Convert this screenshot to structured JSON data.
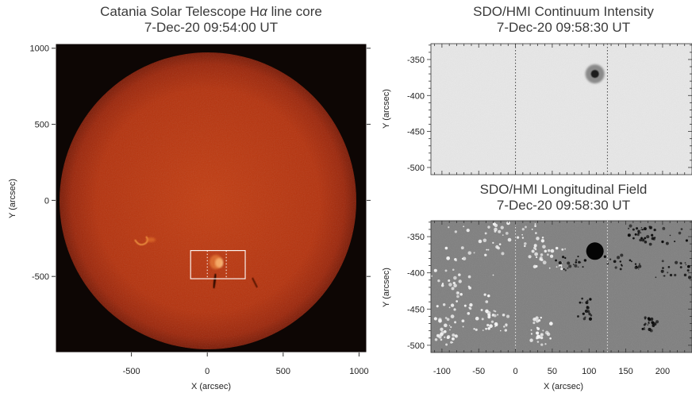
{
  "panels": {
    "halpha": {
      "title_line1": "Catania Solar Telescope  H",
      "title_alpha": "α",
      "title_suffix": " line core",
      "title_line2": "7-Dec-20  09:54:00 UT",
      "xlabel": "X (arcsec)",
      "ylabel": "Y (arcsec)"
    },
    "continuum": {
      "title_line1": "SDO/HMI Continuum Intensity",
      "title_line2": "7-Dec-20  09:58:30 UT",
      "ylabel": "Y (arcsec)"
    },
    "magnetogram": {
      "title_line1": "SDO/HMI Longitudinal Field",
      "title_line2": "7-Dec-20  09:58:30 UT",
      "xlabel": "X (arcsec)",
      "ylabel": "Y (arcsec)"
    }
  },
  "chart_data": [
    {
      "type": "image",
      "panel": "halpha",
      "xlim": [
        -1000,
        1050
      ],
      "ylim": [
        -1000,
        1030
      ],
      "xticks": [
        -500,
        0,
        500,
        1000
      ],
      "yticks": [
        -500,
        0,
        500,
        1000
      ],
      "solar_disk_radius": 975,
      "colormap": "red",
      "box": {
        "x": [
          -110,
          250
        ],
        "y": [
          -515,
          -330
        ]
      },
      "dotted_x": [
        0,
        125
      ]
    },
    {
      "type": "image",
      "panel": "continuum",
      "xlim": [
        -115,
        240
      ],
      "ylim": [
        -510,
        -328
      ],
      "yticks": [
        -350,
        -400,
        -450,
        -500
      ],
      "colormap": "gray",
      "sunspot": {
        "x": 108,
        "y": -370
      },
      "dotted_x": [
        0,
        125
      ]
    },
    {
      "type": "image",
      "panel": "magnetogram",
      "xlim": [
        -115,
        240
      ],
      "ylim": [
        -510,
        -328
      ],
      "xticks": [
        -100,
        -50,
        0,
        50,
        100,
        150,
        200
      ],
      "yticks": [
        -350,
        -400,
        -450,
        -500
      ],
      "colormap": "gray",
      "sunspot": {
        "x": 108,
        "y": -370
      },
      "dotted_x": [
        0,
        125
      ]
    }
  ]
}
